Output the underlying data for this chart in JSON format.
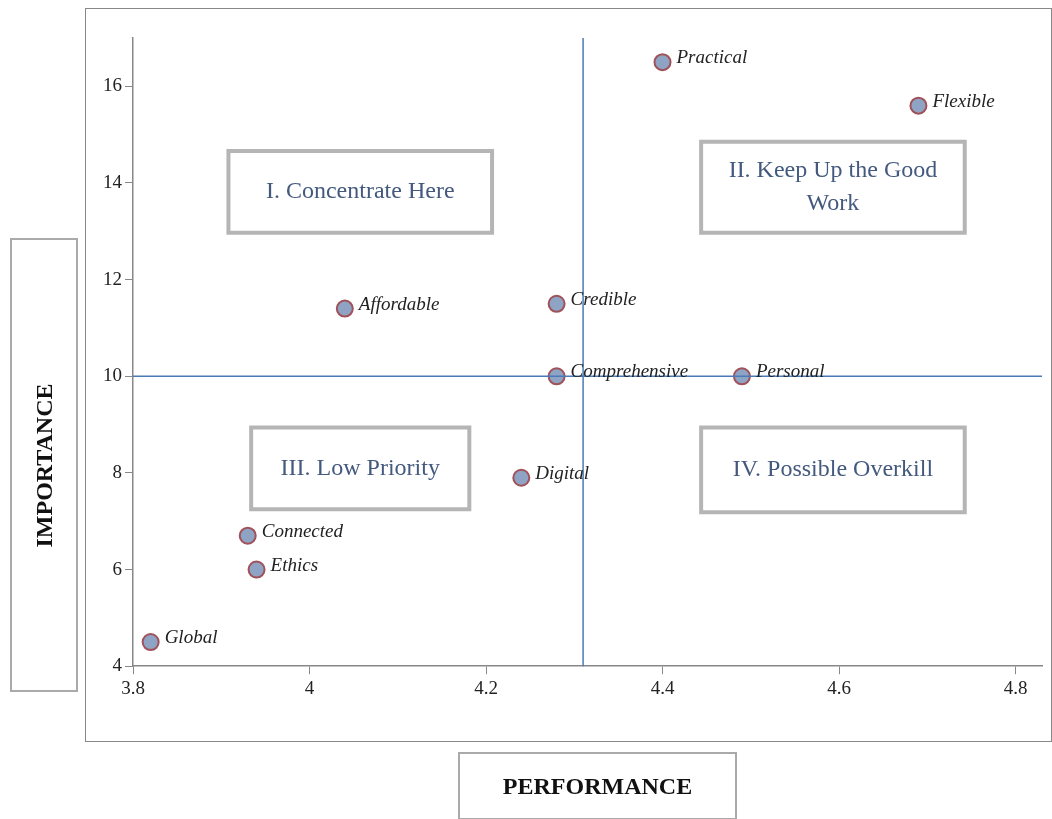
{
  "chart_data": {
    "type": "scatter",
    "xlabel": "PERFORMANCE",
    "ylabel": "IMPORTANCE",
    "xlim": [
      3.8,
      4.83
    ],
    "xticks": [
      3.8,
      4,
      4.2,
      4.4,
      4.6,
      4.8
    ],
    "ylim": [
      4,
      17
    ],
    "yticks": [
      4,
      6,
      8,
      10,
      12,
      14,
      16
    ],
    "grid": false,
    "legend": false,
    "marker": "circle",
    "series": [
      {
        "name": "Practical",
        "color": "#8fa3c4",
        "x": [
          4.4
        ],
        "values": [
          16.5
        ]
      },
      {
        "name": "Flexible",
        "color": "#8fa3c4",
        "x": [
          4.69
        ],
        "values": [
          15.6
        ]
      },
      {
        "name": "Affordable",
        "color": "#8fa3c4",
        "x": [
          4.04
        ],
        "values": [
          11.4
        ]
      },
      {
        "name": "Credible",
        "color": "#8fa3c4",
        "x": [
          4.28
        ],
        "values": [
          11.5
        ]
      },
      {
        "name": "Comprehensive",
        "color": "#8fa3c4",
        "x": [
          4.28
        ],
        "values": [
          10
        ]
      },
      {
        "name": "Personal",
        "color": "#8fa3c4",
        "x": [
          4.49
        ],
        "values": [
          10
        ]
      },
      {
        "name": "Digital",
        "color": "#8fa3c4",
        "x": [
          4.24
        ],
        "values": [
          7.9
        ]
      },
      {
        "name": "Connected",
        "color": "#8fa3c4",
        "x": [
          3.93
        ],
        "values": [
          6.7
        ]
      },
      {
        "name": "Ethics",
        "color": "#8fa3c4",
        "x": [
          3.94
        ],
        "values": [
          6
        ]
      },
      {
        "name": "Global",
        "color": "#8fa3c4",
        "x": [
          3.82
        ],
        "values": [
          4.5
        ]
      }
    ],
    "ref_lines": [
      {
        "axis": "x",
        "value": 4.31,
        "color": "#4a7bb7"
      },
      {
        "axis": "y",
        "value": 10,
        "color": "#4a7bb7"
      }
    ],
    "annotations": [
      "I. Concentrate Here",
      "II. Keep Up the Good Work",
      "III. Low Priority",
      "IV. Possible Overkill"
    ]
  }
}
